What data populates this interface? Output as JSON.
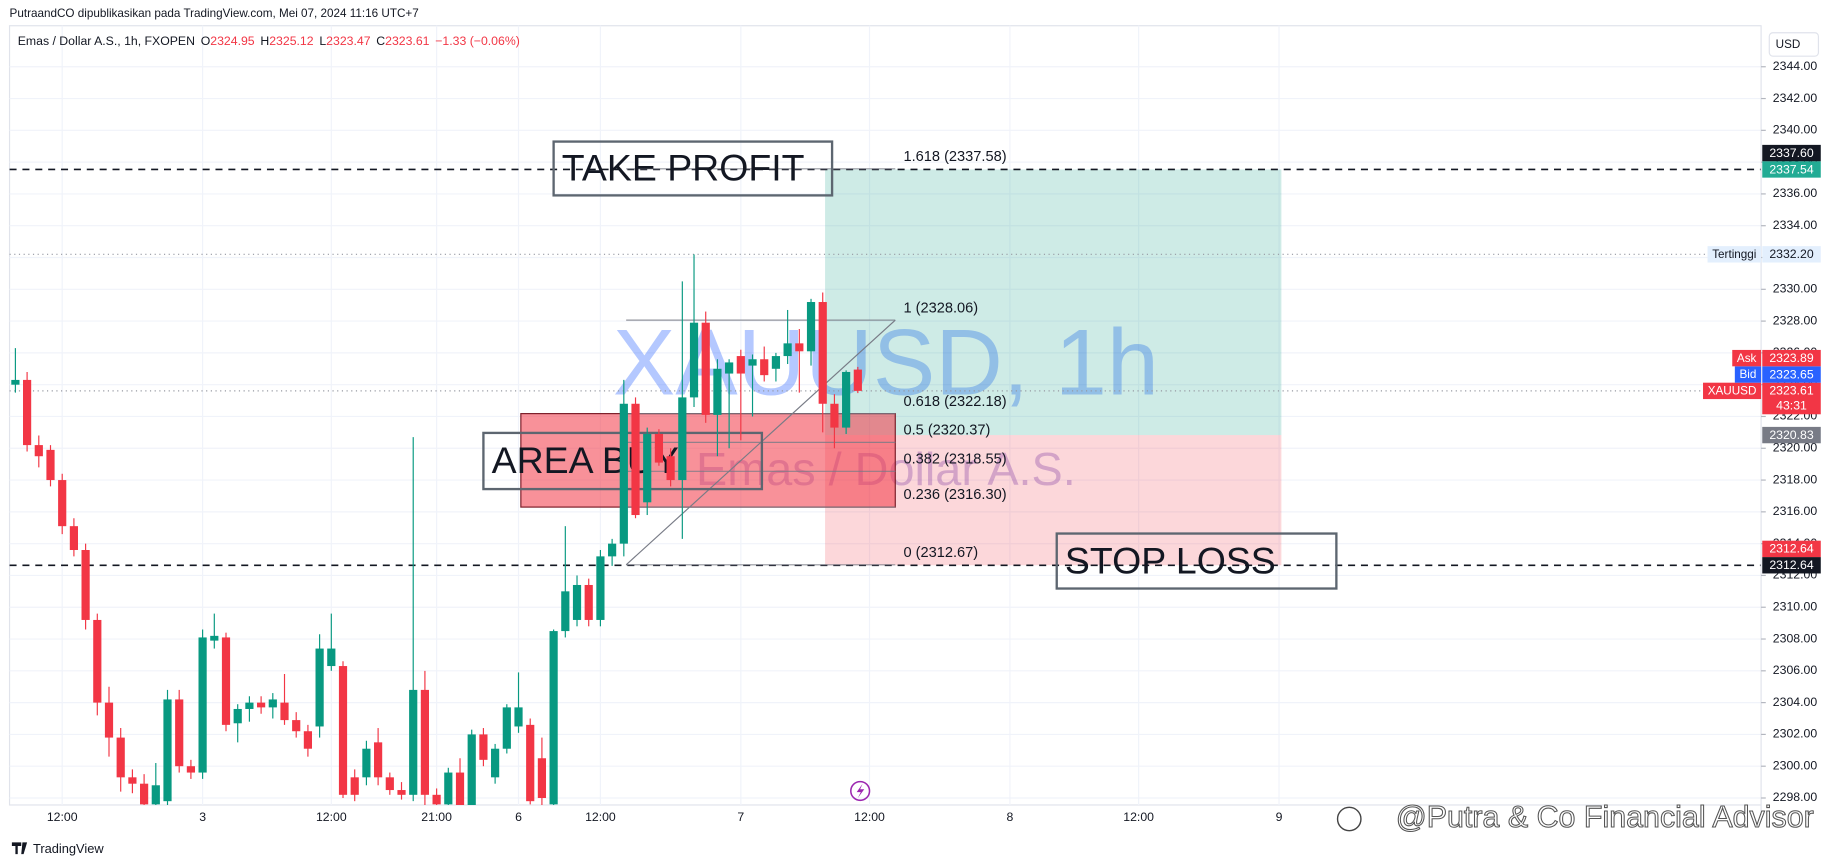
{
  "header": {
    "publisher": "PutraandCO dipublikasikan pada TradingView.com, Mei 07, 2024 11:16 UTC+7",
    "symbol": "Emas / Dollar A.S., 1h, FXOPEN",
    "ohlc": [
      {
        "label": "O",
        "value": 2324.95
      },
      {
        "label": "H",
        "value": 2325.12
      },
      {
        "label": "L",
        "value": 2323.47
      },
      {
        "label": "C",
        "value": 2323.61
      }
    ],
    "change": "−1.33 (−0.06%)"
  },
  "currency": "USD",
  "chart_data": {
    "type": "candlestick",
    "watermark": "XAUUSD, 1h",
    "watermark_sub": "Emas / Dollar A.S.",
    "open": [
      2324.0,
      2324.3,
      2320.2,
      2319.9,
      2318.0,
      2315.1,
      2313.6,
      2309.2,
      2304.0,
      2301.8,
      2299.3,
      2298.9,
      2297.6,
      2297.8,
      2304.2,
      2300.0,
      2299.6,
      2307.9,
      2308.1,
      2302.7,
      2303.6,
      2304.0,
      2303.7,
      2304.0,
      2302.9,
      2302.2,
      2302.5,
      2306.3,
      2306.3,
      2299.3,
      2299.3,
      2301.5,
      2299.3,
      2298.5,
      2298.2,
      2304.8,
      2298.2,
      2297.6,
      2299.6,
      2297.4,
      2302.0,
      2299.3,
      2301.1,
      2302.5,
      2302.6,
      2300.5,
      2297.6,
      2308.5,
      2309.2,
      2311.4,
      2309.2,
      2313.2,
      2314.0,
      2322.8,
      2316.6,
      2320.9,
      2319.5,
      2318.0,
      2323.2,
      2327.9,
      2322.1,
      2324.7,
      2325.8,
      2325.2,
      2325.6,
      2325.0,
      2325.8,
      2326.6,
      2326.1,
      2329.2,
      2322.8,
      2321.3,
      2324.95
    ],
    "high": [
      2326.3,
      2324.8,
      2320.8,
      2320.2,
      2318.4,
      2315.6,
      2314.0,
      2309.6,
      2305.0,
      2302.4,
      2299.8,
      2299.5,
      2300.2,
      2304.8,
      2304.8,
      2300.4,
      2308.6,
      2309.6,
      2308.4,
      2303.9,
      2304.4,
      2304.4,
      2304.6,
      2305.8,
      2303.4,
      2302.6,
      2308.3,
      2309.6,
      2306.6,
      2299.8,
      2301.6,
      2302.4,
      2299.6,
      2299.0,
      2320.7,
      2306.0,
      2298.6,
      2299.9,
      2300.5,
      2302.3,
      2302.4,
      2301.4,
      2303.9,
      2305.9,
      2303.0,
      2301.8,
      2308.6,
      2315.1,
      2312.0,
      2311.8,
      2313.6,
      2314.3,
      2324.3,
      2323.2,
      2321.3,
      2321.2,
      2320.0,
      2330.5,
      2332.2,
      2328.6,
      2325.6,
      2325.6,
      2326.2,
      2325.9,
      2326.4,
      2326.0,
      2328.7,
      2327.5,
      2329.4,
      2329.8,
      2323.4,
      2324.9,
      2325.12
    ],
    "low": [
      2323.5,
      2319.8,
      2318.8,
      2317.6,
      2314.6,
      2313.2,
      2308.6,
      2303.2,
      2300.6,
      2298.4,
      2298.3,
      2297.2,
      2297.0,
      2297.4,
      2299.6,
      2299.2,
      2299.2,
      2307.4,
      2302.2,
      2301.5,
      2302.8,
      2303.3,
      2303.0,
      2302.6,
      2301.8,
      2300.6,
      2301.8,
      2306.0,
      2298.0,
      2297.8,
      2298.8,
      2298.8,
      2298.2,
      2297.9,
      2297.8,
      2297.5,
      2297.2,
      2297.0,
      2297.0,
      2297.0,
      2300.0,
      2298.9,
      2300.8,
      2302.1,
      2297.6,
      2297.3,
      2297.2,
      2308.1,
      2308.8,
      2308.8,
      2308.8,
      2312.6,
      2313.2,
      2315.6,
      2315.8,
      2318.9,
      2317.6,
      2314.3,
      2322.6,
      2321.6,
      2319.5,
      2320.0,
      2320.5,
      2322.0,
      2324.2,
      2324.2,
      2325.3,
      2323.5,
      2325.2,
      2321.0,
      2320.0,
      2320.9,
      2323.47
    ],
    "close": [
      2324.3,
      2320.2,
      2319.5,
      2318.0,
      2315.1,
      2313.6,
      2309.2,
      2304.0,
      2301.8,
      2299.3,
      2298.9,
      2297.6,
      2298.8,
      2304.2,
      2300.0,
      2299.6,
      2308.1,
      2308.2,
      2302.6,
      2303.6,
      2304.0,
      2303.7,
      2304.2,
      2302.9,
      2302.2,
      2301.1,
      2307.4,
      2307.4,
      2298.2,
      2298.2,
      2301.1,
      2299.3,
      2298.5,
      2298.2,
      2304.8,
      2298.2,
      2297.6,
      2299.6,
      2297.5,
      2302.0,
      2300.4,
      2301.1,
      2303.7,
      2303.7,
      2297.8,
      2298.0,
      2308.5,
      2311.0,
      2311.4,
      2309.2,
      2313.2,
      2314.0,
      2322.8,
      2315.8,
      2320.9,
      2319.1,
      2318.0,
      2323.2,
      2327.9,
      2322.1,
      2325.0,
      2325.4,
      2324.7,
      2325.6,
      2324.6,
      2325.8,
      2326.6,
      2326.1,
      2329.2,
      2322.8,
      2321.3,
      2324.8,
      2323.61
    ],
    "up_color": "#089981",
    "down_color": "#f23645",
    "xlim": [
      -0.5,
      148.7
    ],
    "xticks": [
      {
        "value": 4,
        "label": "12:00"
      },
      {
        "value": 16,
        "label": "3"
      },
      {
        "value": 27,
        "label": "12:00"
      },
      {
        "value": 36,
        "label": "21:00"
      },
      {
        "value": 43,
        "label": "6"
      },
      {
        "value": 50,
        "label": "12:00"
      },
      {
        "value": 62,
        "label": "7"
      },
      {
        "value": 73,
        "label": "12:00"
      },
      {
        "value": 85,
        "label": "8"
      },
      {
        "value": 96,
        "label": "12:00"
      },
      {
        "value": 108,
        "label": "9"
      }
    ],
    "ylim": [
      2297.56,
      2346.58
    ],
    "yticks": [
      {
        "value": 2298,
        "label": "2298.00"
      },
      {
        "value": 2300,
        "label": "2300.00"
      },
      {
        "value": 2302,
        "label": "2302.00"
      },
      {
        "value": 2304,
        "label": "2304.00"
      },
      {
        "value": 2306,
        "label": "2306.00"
      },
      {
        "value": 2308,
        "label": "2308.00"
      },
      {
        "value": 2310,
        "label": "2310.00"
      },
      {
        "value": 2312,
        "label": "2312.00"
      },
      {
        "value": 2314,
        "label": "2314.00"
      },
      {
        "value": 2316,
        "label": "2316.00"
      },
      {
        "value": 2318,
        "label": "2318.00"
      },
      {
        "value": 2320,
        "label": "2320.00"
      },
      {
        "value": 2322,
        "label": "2322.00"
      },
      {
        "value": 2324,
        "label": "2324.00"
      },
      {
        "value": 2326,
        "label": "2326.00"
      },
      {
        "value": 2328,
        "label": "2328.00"
      },
      {
        "value": 2330,
        "label": "2330.00"
      },
      {
        "value": 2332,
        "label": "2332.00"
      },
      {
        "value": 2334,
        "label": "2334.00"
      },
      {
        "value": 2336,
        "label": "2336.00"
      },
      {
        "value": 2338,
        "label": "2338.00"
      },
      {
        "value": 2340,
        "label": "2340.00"
      },
      {
        "value": 2342,
        "label": "2342.00"
      },
      {
        "value": 2344,
        "label": "2344.00"
      }
    ],
    "grid": true,
    "price_labels": [
      {
        "value": 2337.54,
        "label": "2337.54",
        "bg": "#22ab94",
        "fg": "#ffffff",
        "line": "dashed"
      },
      {
        "value": 2337.6,
        "label": "2337.60",
        "bg": "#131722",
        "fg": "#ffffff"
      },
      {
        "value": 2332.2,
        "label": "2332.20",
        "bg": "#e3effd",
        "fg": "#131722",
        "tag": "Tertinggi",
        "line": "dotted"
      },
      {
        "value": 2323.61,
        "label": "2323.61",
        "bg": "#f23645",
        "fg": "#ffffff",
        "tag": "XAUUSD",
        "sub": "43:31",
        "line": "dotted"
      },
      {
        "value": 2323.65,
        "label": "2323.65",
        "bg": "#2962ff",
        "fg": "#ffffff",
        "tag": "Bid"
      },
      {
        "value": 2323.89,
        "label": "2323.89",
        "bg": "#f23645",
        "fg": "#ffffff",
        "tag": "Ask"
      },
      {
        "value": 2320.83,
        "label": "2320.83",
        "bg": "#787b86",
        "fg": "#ffffff"
      },
      {
        "value": 2312.64,
        "label": "2312.64",
        "bg": "#131722",
        "fg": "#ffffff",
        "line": "dashed"
      },
      {
        "value": 2312.64,
        "label": "2312.64",
        "bg": "#f23645",
        "fg": "#ffffff"
      }
    ],
    "fibonacci": [
      {
        "label": "1.618 (2337.58)",
        "value": 2337.58
      },
      {
        "label": "1 (2328.06)",
        "value": 2328.06
      },
      {
        "label": "0.618 (2322.18)",
        "value": 2322.18
      },
      {
        "label": "0.5 (2320.37)",
        "value": 2320.37
      },
      {
        "label": "0.382 (2318.55)",
        "value": 2318.55
      },
      {
        "label": "0.236 (2316.30)",
        "value": 2316.3
      },
      {
        "label": "0 (2312.67)",
        "value": 2312.67
      }
    ],
    "annotations": [
      "TAKE PROFIT",
      "AREA BUY",
      "STOP LOSS"
    ]
  },
  "footer": {
    "logo": "TradingView",
    "watermark": "@Putra & Co Financial Advisor"
  }
}
